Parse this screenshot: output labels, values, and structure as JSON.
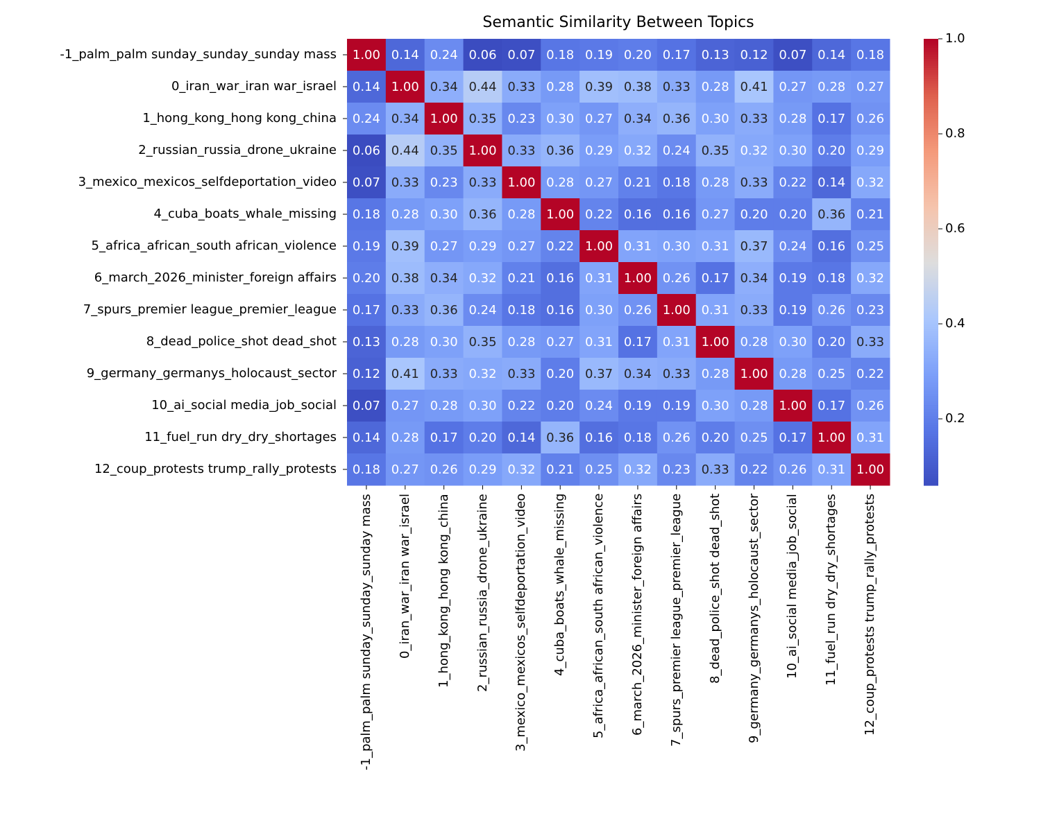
{
  "chart_data": {
    "type": "heatmap",
    "title": "Semantic Similarity Between Topics",
    "labels": [
      "-1_palm_palm sunday_sunday_sunday mass",
      "0_iran_war_iran war_israel",
      "1_hong_kong_hong kong_china",
      "2_russian_russia_drone_ukraine",
      "3_mexico_mexicos_selfdeportation_video",
      "4_cuba_boats_whale_missing",
      "5_africa_african_south african_violence",
      "6_march_2026_minister_foreign affairs",
      "7_spurs_premier league_premier_league",
      "8_dead_police_shot dead_shot",
      "9_germany_germanys_holocaust_sector",
      "10_ai_social media_job_social",
      "11_fuel_run dry_dry_shortages",
      "12_coup_protests trump_rally_protests"
    ],
    "values": [
      [
        1.0,
        0.14,
        0.24,
        0.06,
        0.07,
        0.18,
        0.19,
        0.2,
        0.17,
        0.13,
        0.12,
        0.07,
        0.14,
        0.18
      ],
      [
        0.14,
        1.0,
        0.34,
        0.44,
        0.33,
        0.28,
        0.39,
        0.38,
        0.33,
        0.28,
        0.41,
        0.27,
        0.28,
        0.27
      ],
      [
        0.24,
        0.34,
        1.0,
        0.35,
        0.23,
        0.3,
        0.27,
        0.34,
        0.36,
        0.3,
        0.33,
        0.28,
        0.17,
        0.26
      ],
      [
        0.06,
        0.44,
        0.35,
        1.0,
        0.33,
        0.36,
        0.29,
        0.32,
        0.24,
        0.35,
        0.32,
        0.3,
        0.2,
        0.29
      ],
      [
        0.07,
        0.33,
        0.23,
        0.33,
        1.0,
        0.28,
        0.27,
        0.21,
        0.18,
        0.28,
        0.33,
        0.22,
        0.14,
        0.32
      ],
      [
        0.18,
        0.28,
        0.3,
        0.36,
        0.28,
        1.0,
        0.22,
        0.16,
        0.16,
        0.27,
        0.2,
        0.2,
        0.36,
        0.21
      ],
      [
        0.19,
        0.39,
        0.27,
        0.29,
        0.27,
        0.22,
        1.0,
        0.31,
        0.3,
        0.31,
        0.37,
        0.24,
        0.16,
        0.25
      ],
      [
        0.2,
        0.38,
        0.34,
        0.32,
        0.21,
        0.16,
        0.31,
        1.0,
        0.26,
        0.17,
        0.34,
        0.19,
        0.18,
        0.32
      ],
      [
        0.17,
        0.33,
        0.36,
        0.24,
        0.18,
        0.16,
        0.3,
        0.26,
        1.0,
        0.31,
        0.33,
        0.19,
        0.26,
        0.23
      ],
      [
        0.13,
        0.28,
        0.3,
        0.35,
        0.28,
        0.27,
        0.31,
        0.17,
        0.31,
        1.0,
        0.28,
        0.3,
        0.2,
        0.33
      ],
      [
        0.12,
        0.41,
        0.33,
        0.32,
        0.33,
        0.2,
        0.37,
        0.34,
        0.33,
        0.28,
        1.0,
        0.28,
        0.25,
        0.22
      ],
      [
        0.07,
        0.27,
        0.28,
        0.3,
        0.22,
        0.2,
        0.24,
        0.19,
        0.19,
        0.3,
        0.28,
        1.0,
        0.17,
        0.26
      ],
      [
        0.14,
        0.28,
        0.17,
        0.2,
        0.14,
        0.36,
        0.16,
        0.18,
        0.26,
        0.2,
        0.25,
        0.17,
        1.0,
        0.31
      ],
      [
        0.18,
        0.27,
        0.26,
        0.29,
        0.32,
        0.21,
        0.25,
        0.32,
        0.23,
        0.33,
        0.22,
        0.26,
        0.31,
        1.0
      ]
    ],
    "colormap": "coolwarm",
    "vmin": 0.06,
    "vmax": 1.0,
    "colorbar_ticks": [
      "0.2",
      "0.4",
      "0.6",
      "0.8",
      "1.0"
    ],
    "annotations": true,
    "annotation_format": "0.00"
  }
}
